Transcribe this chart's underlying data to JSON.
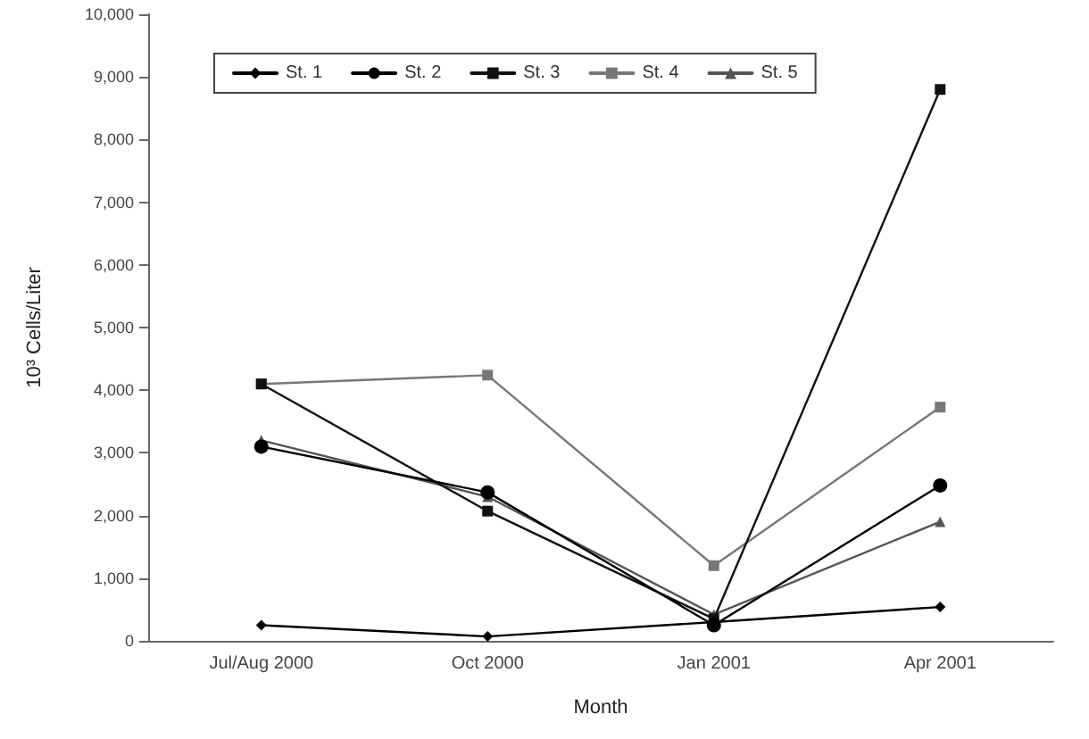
{
  "chart_data": {
    "type": "line",
    "xlabel": "Month",
    "ylabel": "10³ Cells/Liter",
    "categories": [
      "Jul/Aug 2000",
      "Oct 2000",
      "Jan 2001",
      "Apr 2001"
    ],
    "series": [
      {
        "name": "St. 1",
        "color": "#000000",
        "marker": "diamond",
        "values": [
          250,
          70,
          300,
          540
        ]
      },
      {
        "name": "St. 2",
        "color": "#000000",
        "marker": "circle",
        "values": [
          3100,
          2370,
          250,
          2480
        ]
      },
      {
        "name": "St. 3",
        "color": "#111111",
        "marker": "square",
        "values": [
          4100,
          2070,
          350,
          8800
        ]
      },
      {
        "name": "St. 4",
        "color": "#777777",
        "marker": "square",
        "values": [
          4100,
          4240,
          1200,
          3730
        ]
      },
      {
        "name": "St. 5",
        "color": "#555555",
        "marker": "triangle",
        "values": [
          3200,
          2300,
          420,
          1900
        ]
      }
    ],
    "ylim": [
      0,
      10000
    ],
    "yticks": [
      {
        "value": 0,
        "label": "0"
      },
      {
        "value": 1000,
        "label": "1,000"
      },
      {
        "value": 2000,
        "label": "2,000"
      },
      {
        "value": 3000,
        "label": "3,000"
      },
      {
        "value": 4000,
        "label": "4,000"
      },
      {
        "value": 5000,
        "label": "5,000"
      },
      {
        "value": 6000,
        "label": "6,000"
      },
      {
        "value": 7000,
        "label": "7,000"
      },
      {
        "value": 8000,
        "label": "8,000"
      },
      {
        "value": 9000,
        "label": "9,000"
      },
      {
        "value": 10000,
        "label": "10,000"
      }
    ],
    "grid": false,
    "legend": "top left",
    "line_style": "solid"
  }
}
